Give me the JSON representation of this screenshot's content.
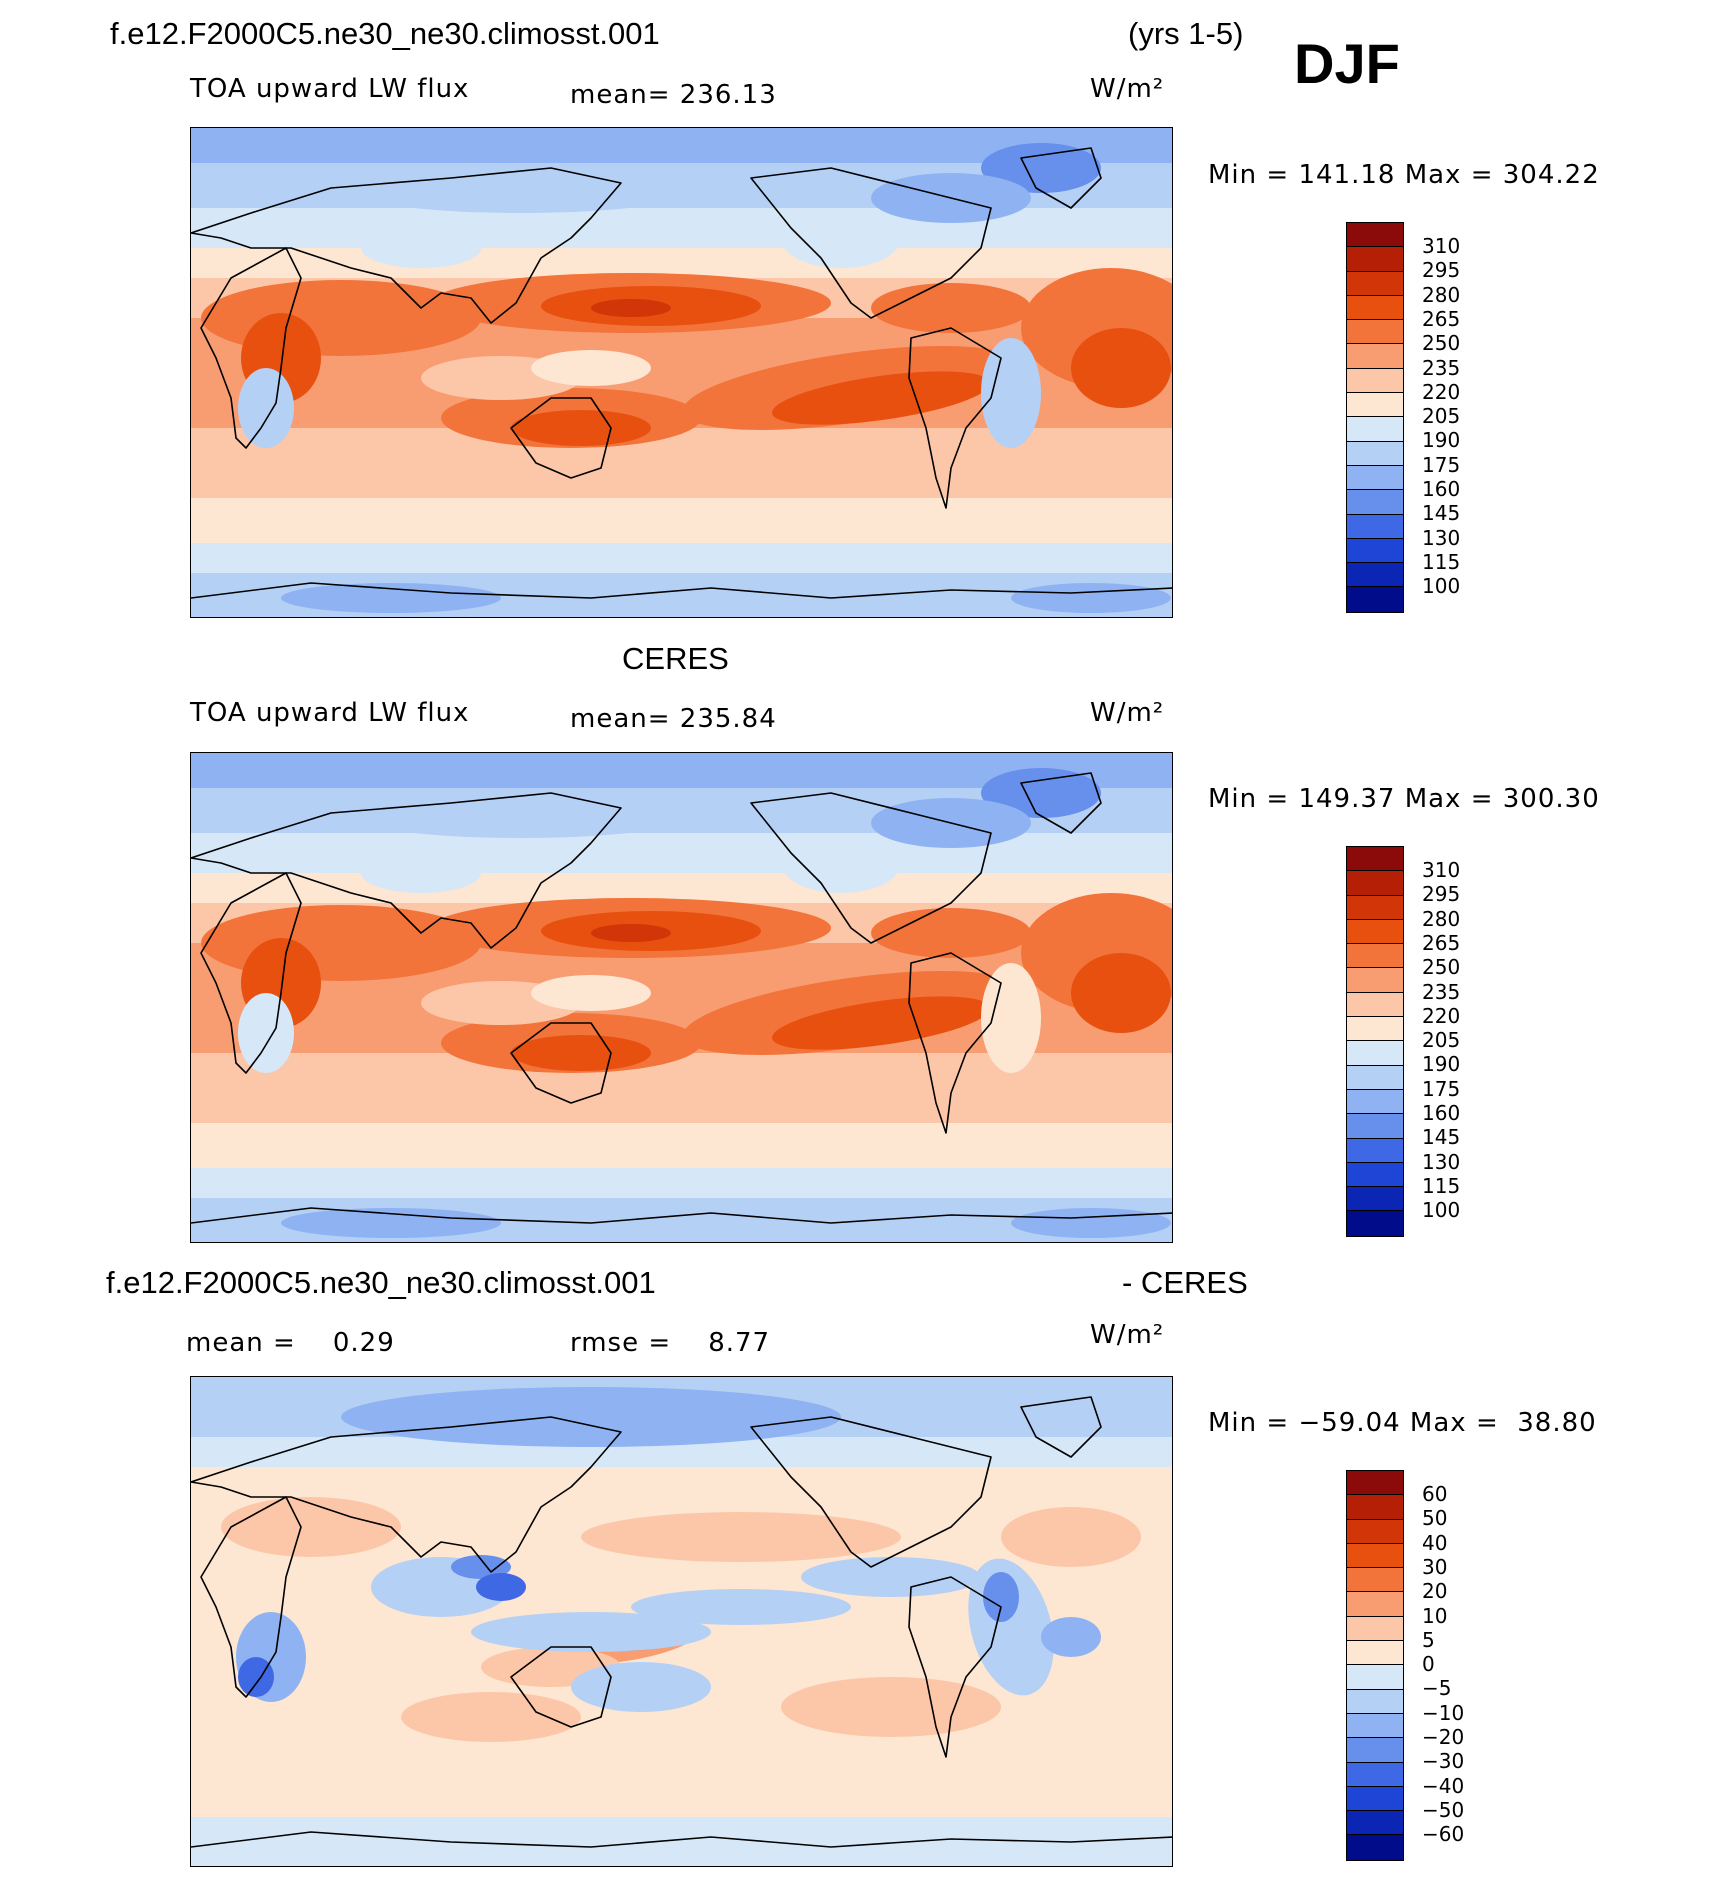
{
  "header": {
    "case_name": "f.e12.F2000C5.ne30_ne30.climosst.001",
    "years": "(yrs 1-5)",
    "season": "DJF"
  },
  "panels": [
    {
      "id": "model",
      "title": "",
      "variable": "TOA upward LW flux",
      "mean_text": "mean= 236.13",
      "units": "W/m²",
      "minmax_text": "Min = 141.18 Max = 304.22",
      "colorbar_labels": [
        "310",
        "295",
        "280",
        "265",
        "250",
        "235",
        "220",
        "205",
        "190",
        "175",
        "160",
        "145",
        "130",
        "115",
        "100"
      ],
      "colorbar_colors": [
        "#8b0a0a",
        "#b51f06",
        "#d23508",
        "#e8500f",
        "#f3743b",
        "#f89d72",
        "#fcc7a8",
        "#fde6d2",
        "#d6e7f7",
        "#b5d0f5",
        "#8fb3f2",
        "#6690ec",
        "#3f69e4",
        "#1e45d6",
        "#0b25b5",
        "#000c8a"
      ]
    },
    {
      "id": "obs",
      "title": "CERES",
      "variable": "TOA upward LW flux",
      "mean_text": "mean= 235.84",
      "units": "W/m²",
      "minmax_text": "Min = 149.37 Max = 300.30",
      "colorbar_labels": [
        "310",
        "295",
        "280",
        "265",
        "250",
        "235",
        "220",
        "205",
        "190",
        "175",
        "160",
        "145",
        "130",
        "115",
        "100"
      ],
      "colorbar_colors": [
        "#8b0a0a",
        "#b51f06",
        "#d23508",
        "#e8500f",
        "#f3743b",
        "#f89d72",
        "#fcc7a8",
        "#fde6d2",
        "#d6e7f7",
        "#b5d0f5",
        "#8fb3f2",
        "#6690ec",
        "#3f69e4",
        "#1e45d6",
        "#0b25b5",
        "#000c8a"
      ]
    },
    {
      "id": "diff",
      "title_left": "f.e12.F2000C5.ne30_ne30.climosst.001",
      "title_right": "- CERES",
      "mean_text": "mean =    0.29",
      "rmse_text": "rmse =    8.77",
      "units": "W/m²",
      "minmax_text": "Min = −59.04 Max =  38.80",
      "colorbar_labels": [
        "60",
        "50",
        "40",
        "30",
        "20",
        "10",
        "5",
        "0",
        "−5",
        "−10",
        "−20",
        "−30",
        "−40",
        "−50",
        "−60"
      ],
      "colorbar_colors": [
        "#8b0a0a",
        "#b51f06",
        "#d23508",
        "#e8500f",
        "#f3743b",
        "#f89d72",
        "#fcc7a8",
        "#fde6d2",
        "#d6e7f7",
        "#b5d0f5",
        "#8fb3f2",
        "#6690ec",
        "#3f69e4",
        "#1e45d6",
        "#0b25b5",
        "#000c8a"
      ]
    }
  ],
  "map_data": {
    "projection": "cylindrical equidistant",
    "center_longitude": 180,
    "field": "TOA upward LW flux (DJF climatology)"
  }
}
